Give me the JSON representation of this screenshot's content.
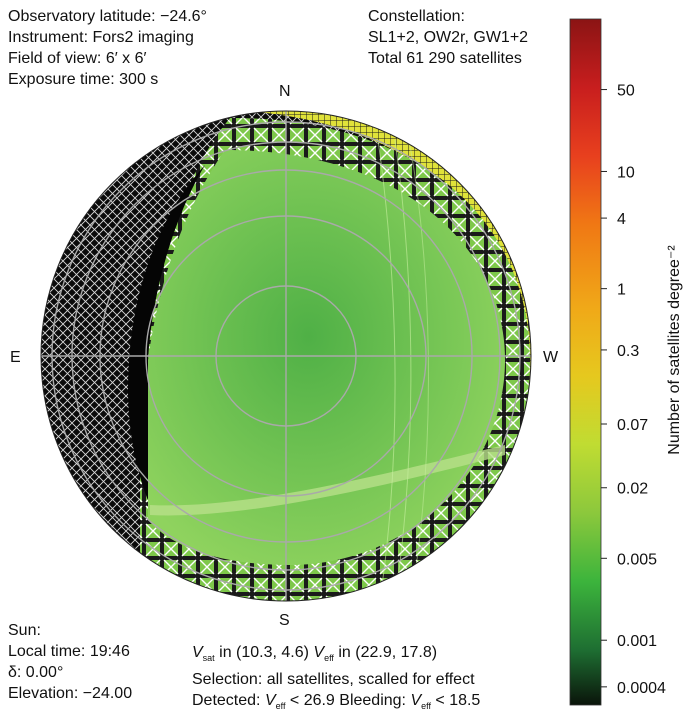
{
  "observatory": {
    "latitude": "Observatory latitude: −24.6°",
    "instrument": "Instrument: Fors2 imaging",
    "field_of_view": "Field of view: 6′ x 6′",
    "exposure": "Exposure time: 300 s"
  },
  "constellation": {
    "label": "Constellation:",
    "names": "SL1+2, OW2r, GW1+2",
    "total": "Total 61 290 satellites"
  },
  "compass": {
    "north": "N",
    "south": "S",
    "east": "E",
    "west": "W"
  },
  "sun": {
    "label": "Sun:",
    "local_time": "Local time: 19:46",
    "delta": "δ: 0.00°",
    "elevation": "Elevation: −24.00"
  },
  "selection": {
    "vsat_prefix": "V",
    "vsat_sub": "sat",
    "vsat_range": " in (10.3, 4.6) ",
    "veff_prefix": "V",
    "veff_sub": "eff",
    "veff_range": " in (22.9, 17.8)",
    "selection_text": "Selection: all satellites, scalled for effect",
    "detected_label": "Detected: ",
    "detected_limit": " < 26.9 Bleeding: ",
    "bleeding_limit": " < 18.5"
  },
  "colors": {
    "dark_region": "#0a0a0a",
    "green_fill": "#6cc142",
    "green_light": "#9ad66a",
    "yellow_band": "#e8ea3a",
    "grid_line": "#a9a9a9",
    "hatch_white": "#ffffff"
  },
  "chart_data": {
    "type": "heatmap",
    "projection": "polar all-sky (zenith at center)",
    "grid": true,
    "colorbar": {
      "label": "Number of satellites degree⁻²",
      "scale": "log",
      "ticks": [
        "50",
        "10",
        "4",
        "1",
        "0.3",
        "0.07",
        "0.02",
        "0.005",
        "0.001",
        "0.0004"
      ],
      "colors": [
        "#8b1414",
        "#c81e1e",
        "#e8401e",
        "#f07814",
        "#f0a818",
        "#e6c81e",
        "#c0dc32",
        "#8cc83c",
        "#3cb43c",
        "#1e6e32",
        "#0a140a"
      ]
    }
  }
}
